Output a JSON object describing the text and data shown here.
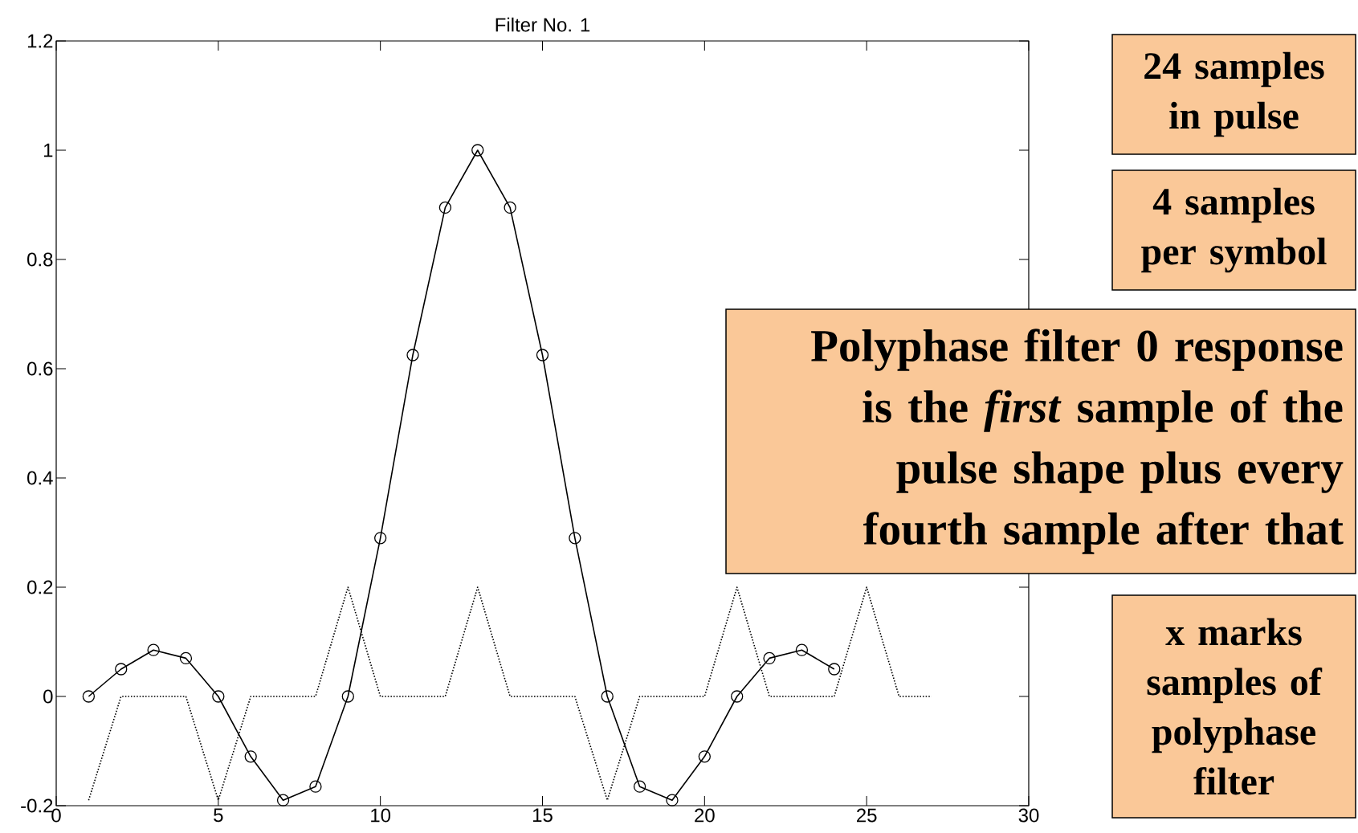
{
  "chart_data": {
    "type": "line",
    "title": "Filter No. 1",
    "xlim": [
      0,
      30
    ],
    "ylim": [
      -0.2,
      1.2
    ],
    "xticks": [
      0,
      5,
      10,
      15,
      20,
      25,
      30
    ],
    "yticks": [
      -0.2,
      0,
      0.2,
      0.4,
      0.6,
      0.8,
      1,
      1.2
    ],
    "series": [
      {
        "color": "#000000",
        "marker": "circle",
        "line_style": "solid",
        "x": [
          1,
          2,
          3,
          4,
          5,
          6,
          7,
          8,
          9,
          10,
          11,
          12,
          13,
          14,
          15,
          16,
          17,
          18,
          19,
          20,
          21,
          22,
          23,
          24
        ],
        "values": [
          0,
          0.05,
          0.085,
          0.07,
          0,
          -0.11,
          -0.19,
          -0.165,
          0,
          0.29,
          0.625,
          0.895,
          1.0,
          0.895,
          0.625,
          0.29,
          0,
          -0.165,
          -0.19,
          -0.11,
          0,
          0.07,
          0.085,
          0.05
        ]
      },
      {
        "color": "#000000",
        "marker": "none",
        "line_style": "dotted",
        "x": [
          1,
          2,
          3,
          4,
          5,
          6,
          7,
          8,
          9,
          10,
          11,
          12,
          13,
          14,
          15,
          16,
          17,
          18,
          19,
          20,
          21,
          22,
          23,
          24,
          25,
          26,
          27
        ],
        "values": [
          -0.19,
          0,
          0,
          0,
          -0.19,
          0,
          0,
          0,
          0.2,
          0,
          0,
          0,
          0.2,
          0,
          0,
          0,
          -0.19,
          0,
          0,
          0,
          0.2,
          0,
          0,
          0,
          0.2,
          0,
          0
        ]
      }
    ],
    "annotations": [
      "24 samples in pulse",
      "4 samples per symbol",
      "Polyphase filter 0 response is the *first* sample of the pulse shape plus every fourth sample after that",
      "x marks samples of polyphase filter"
    ]
  }
}
